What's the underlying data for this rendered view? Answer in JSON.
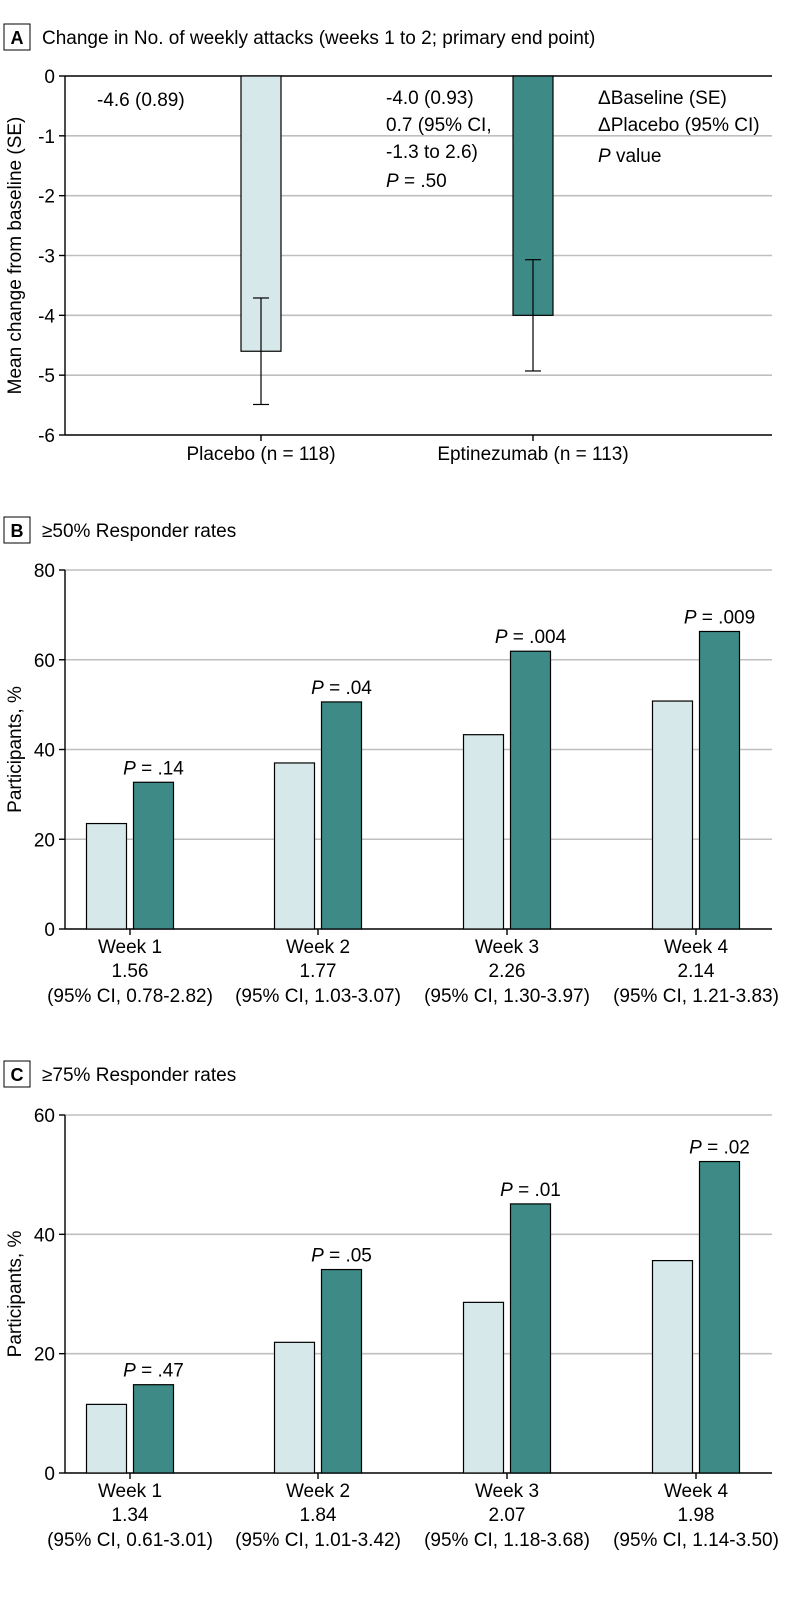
{
  "colors": {
    "placebo": "#d6e8ea",
    "eptinezumab": "#3d8a86",
    "grid": "#bfbfbf"
  },
  "chart_data": [
    {
      "panel": "A",
      "type": "bar",
      "title": "Change in No. of weekly attacks (weeks 1 to 2; primary end point)",
      "ylabel": "Mean change from baseline (SE)",
      "ylim": [
        -6,
        0
      ],
      "yticks": [
        "0",
        "-1",
        "-2",
        "-3",
        "-4",
        "-5",
        "-6"
      ],
      "categories": [
        "Placebo (n = 118)",
        "Eptinezumab (n = 113)"
      ],
      "values": [
        -4.6,
        -4.0
      ],
      "se": [
        0.89,
        0.93
      ],
      "series_colors": [
        "placebo",
        "eptinezumab"
      ],
      "annotations": {
        "placebo": "-4.6 (0.89)",
        "eptinezumab_lines": [
          "-4.0 (0.93)",
          "0.7 (95% CI,",
          "-1.3 to 2.6)"
        ],
        "eptinezumab_p_label": "P",
        "eptinezumab_p_value": " = .50"
      },
      "legend": {
        "line1": "ΔBaseline (SE)",
        "line2": "ΔPlacebo (95% CI)",
        "line3_italic": "P",
        "line3_rest": " value"
      }
    },
    {
      "panel": "B",
      "type": "bar",
      "title": "≥50% Responder rates",
      "ylabel": "Participants, %",
      "ylim": [
        0,
        80
      ],
      "yticks": [
        "0",
        "20",
        "40",
        "60",
        "80"
      ],
      "categories": [
        "Week 1",
        "Week 2",
        "Week 3",
        "Week 4"
      ],
      "series": [
        {
          "name": "Placebo",
          "values": [
            23.5,
            37,
            43.3,
            50.8
          ]
        },
        {
          "name": "Eptinezumab",
          "values": [
            32.7,
            50.6,
            61.9,
            66.3
          ]
        }
      ],
      "p_label": "P",
      "p_values": [
        " = .14",
        " = .04",
        " = .004",
        " = .009"
      ],
      "ratios": [
        "1.56",
        "1.77",
        "2.26",
        "2.14"
      ],
      "cis": [
        "(95% CI, 0.78-2.82)",
        "(95% CI, 1.03-3.07)",
        "(95% CI, 1.30-3.97)",
        "(95% CI, 1.21-3.83)"
      ]
    },
    {
      "panel": "C",
      "type": "bar",
      "title": "≥75% Responder rates",
      "ylabel": "Participants, %",
      "ylim": [
        0,
        60
      ],
      "yticks": [
        "0",
        "20",
        "40",
        "60"
      ],
      "categories": [
        "Week 1",
        "Week 2",
        "Week 3",
        "Week 4"
      ],
      "series": [
        {
          "name": "Placebo",
          "values": [
            11.5,
            21.9,
            28.6,
            35.6
          ]
        },
        {
          "name": "Eptinezumab",
          "values": [
            14.8,
            34.1,
            45.1,
            52.2
          ]
        }
      ],
      "p_label": "P",
      "p_values": [
        " = .47",
        " = .05",
        " = .01",
        " = .02"
      ],
      "ratios": [
        "1.34",
        "1.84",
        "2.07",
        "1.98"
      ],
      "cis": [
        "(95% CI, 0.61-3.01)",
        "(95% CI, 1.01-3.42)",
        "(95% CI, 1.18-3.68)",
        "(95% CI, 1.14-3.50)"
      ]
    }
  ]
}
